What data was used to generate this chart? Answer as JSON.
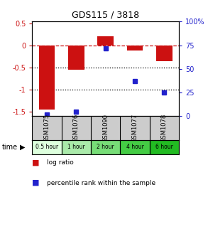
{
  "title": "GDS115 / 3818",
  "samples": [
    "GSM1075",
    "GSM1076",
    "GSM1090",
    "GSM1077",
    "GSM1078"
  ],
  "time_labels": [
    "0.5 hour",
    "1 hour",
    "2 hour",
    "4 hour",
    "6 hour"
  ],
  "time_colors": [
    "#ddffdd",
    "#aaeaaa",
    "#77dd77",
    "#44cc44",
    "#22bb22"
  ],
  "log_ratio": [
    -1.45,
    -0.55,
    0.22,
    -0.1,
    -0.35
  ],
  "percentile": [
    2,
    5,
    72,
    37,
    25
  ],
  "bar_color": "#cc1111",
  "dot_color": "#2222cc",
  "ylim_left": [
    -1.6,
    0.55
  ],
  "ylim_right": [
    0,
    100
  ],
  "yticks_left": [
    0.5,
    0.0,
    -0.5,
    -1.0,
    -1.5
  ],
  "yticks_right": [
    100,
    75,
    50,
    25,
    0
  ],
  "hline_dashed": 0,
  "hlines_dotted": [
    -0.5,
    -1.0
  ],
  "gsm_bg": "#cccccc",
  "plot_bg": "#ffffff",
  "fig_bg": "#ffffff"
}
